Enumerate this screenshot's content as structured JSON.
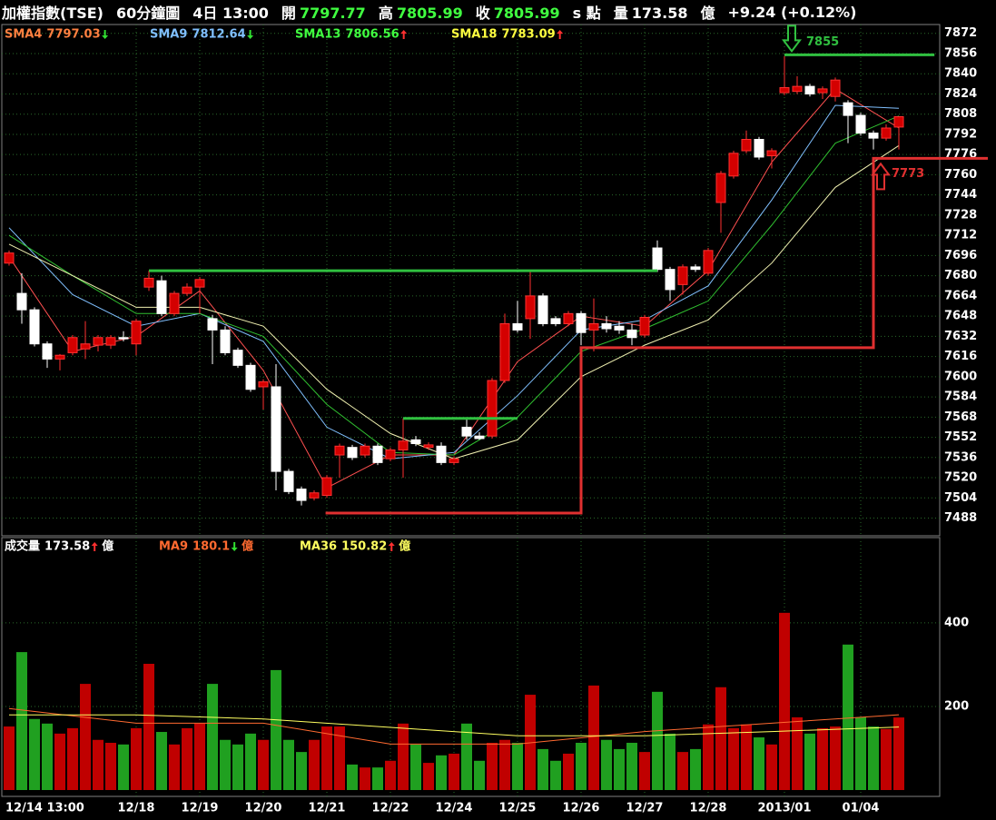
{
  "header": [
    {
      "text": "加權指數(TSE)"
    },
    {
      "text": "60分鐘圖"
    },
    {
      "text": "4日 13:00"
    },
    {
      "text": "開",
      "value": 7797.77,
      "color": "#40ff40"
    },
    {
      "text": "高",
      "value": 7805.99,
      "color": "#40ff40"
    },
    {
      "text": "收",
      "value": 7805.99,
      "color": "#40ff40"
    },
    {
      "text": "s 點"
    },
    {
      "text": "量",
      "value": 173.58,
      "color": "#ffffff"
    },
    {
      "text": "億"
    },
    {
      "text": "+9.24 (+0.12%)"
    }
  ],
  "chart_data": {
    "type": "candlestick",
    "categories": [
      "12/14 13:00",
      null,
      null,
      null,
      null,
      null,
      null,
      null,
      null,
      null,
      "12/18",
      null,
      null,
      null,
      null,
      "12/19",
      null,
      null,
      null,
      null,
      "12/20",
      null,
      null,
      null,
      null,
      "12/21",
      null,
      null,
      null,
      null,
      "12/22",
      null,
      null,
      null,
      null,
      "12/24",
      null,
      null,
      null,
      null,
      "12/25",
      null,
      null,
      null,
      null,
      "12/26",
      null,
      null,
      null,
      null,
      "12/27",
      null,
      null,
      null,
      null,
      "12/28",
      null,
      null,
      null,
      null,
      null,
      "2013/01",
      null,
      null,
      null,
      null,
      null,
      "01/04",
      null,
      null,
      null
    ],
    "open": [
      7690,
      7666,
      7653,
      7626,
      7614,
      7619,
      7622,
      7625,
      7625,
      7631,
      7626,
      7671,
      7676,
      7650,
      7666,
      7671,
      7646,
      7637,
      7621,
      7609,
      7592,
      7592,
      7525,
      7511,
      7504,
      7506,
      7538,
      7544,
      7538,
      7545,
      7535,
      7542,
      7550,
      7544,
      7545,
      7532,
      7560,
      7553,
      7553,
      7597,
      7642,
      7646,
      7664,
      7646,
      7642,
      7650,
      7637,
      7642,
      7640,
      7637,
      7633,
      7702,
      7685,
      7673,
      7687,
      7682,
      7738,
      7759,
      7779,
      7788,
      7775,
      7825,
      7826,
      7830,
      7825,
      7822,
      7817,
      7807,
      7793,
      7789,
      7797.77
    ],
    "high": [
      7700,
      7682,
      7655,
      7628,
      7618,
      7633,
      7644,
      7633,
      7633,
      7636,
      7646,
      7684,
      7680,
      7668,
      7674,
      7679,
      7649,
      7640,
      7623,
      7611,
      7598,
      7610,
      7527,
      7513,
      7510,
      7522,
      7547,
      7546,
      7547,
      7547,
      7544,
      7567,
      7553,
      7548,
      7548,
      7537,
      7567,
      7556,
      7599,
      7650,
      7660,
      7683,
      7666,
      7648,
      7652,
      7652,
      7662,
      7648,
      7644,
      7642,
      7649,
      7708,
      7687,
      7689,
      7689,
      7702,
      7763,
      7779,
      7795,
      7790,
      7781,
      7854,
      7838,
      7832,
      7830,
      7837,
      7819,
      7809,
      7795,
      7800,
      7805.99
    ],
    "low": [
      7688,
      7642,
      7624,
      7607,
      7605,
      7617,
      7614,
      7620,
      7622,
      7628,
      7617,
      7668,
      7648,
      7648,
      7664,
      7650,
      7610,
      7617,
      7607,
      7588,
      7574,
      7510,
      7507,
      7498,
      7502,
      7504,
      7520,
      7534,
      7536,
      7530,
      7533,
      7520,
      7545,
      7542,
      7530,
      7530,
      7550,
      7550,
      7551,
      7595,
      7635,
      7630,
      7640,
      7640,
      7640,
      7625,
      7620,
      7635,
      7634,
      7625,
      7631,
      7683,
      7660,
      7665,
      7683,
      7680,
      7714,
      7757,
      7777,
      7772,
      7765,
      7823,
      7824,
      7822,
      7820,
      7818,
      7785,
      7791,
      7780,
      7787,
      7780
    ],
    "close": [
      7698,
      7653,
      7626,
      7614,
      7617,
      7631,
      7626,
      7631,
      7631,
      7630,
      7644,
      7678,
      7650,
      7666,
      7671,
      7677,
      7637,
      7619,
      7609,
      7590,
      7596,
      7525,
      7509,
      7502,
      7508,
      7520,
      7545,
      7536,
      7545,
      7532,
      7542,
      7549,
      7547,
      7546,
      7532,
      7535,
      7553,
      7551,
      7597,
      7642,
      7637,
      7664,
      7642,
      7642,
      7650,
      7635,
      7642,
      7638,
      7637,
      7631,
      7647,
      7685,
      7669,
      7687,
      7685,
      7700,
      7761,
      7777,
      7788,
      7774,
      7779,
      7829,
      7830,
      7824,
      7828,
      7835,
      7807,
      7793,
      7789,
      7797,
      7805.99
    ],
    "up_color": "#d40000",
    "down_color": "#ffffff",
    "ylim": [
      7474,
      7879
    ],
    "yticks": [
      7488,
      7504,
      7520,
      7536,
      7552,
      7568,
      7584,
      7600,
      7616,
      7632,
      7648,
      7664,
      7680,
      7696,
      7712,
      7728,
      7744,
      7760,
      7776,
      7792,
      7808,
      7824,
      7840,
      7856,
      7872
    ],
    "grid": true,
    "series": [
      {
        "name": "SMA4",
        "color": "#ff8040",
        "line_color": "#ff5050",
        "trend": "down",
        "x": [
          0,
          5,
          10,
          15,
          20,
          25,
          30,
          35,
          40,
          45,
          50,
          55,
          60,
          65,
          70
        ],
        "values": [
          7695,
          7620,
          7632,
          7668,
          7605,
          7512,
          7538,
          7538,
          7612,
          7648,
          7640,
          7684,
          7770,
          7828,
          7797.03
        ]
      },
      {
        "name": "SMA9",
        "color": "#80c0ff",
        "line_color": "#80c0ff",
        "trend": "down",
        "x": [
          0,
          5,
          10,
          15,
          20,
          25,
          30,
          35,
          40,
          45,
          50,
          55,
          60,
          65,
          70
        ],
        "values": [
          7718,
          7665,
          7640,
          7650,
          7628,
          7560,
          7535,
          7540,
          7585,
          7637,
          7645,
          7672,
          7740,
          7815,
          7812.64
        ]
      },
      {
        "name": "SMA13",
        "color": "#40ff40",
        "line_color": "#30c030",
        "trend": "up",
        "x": [
          0,
          5,
          10,
          15,
          20,
          25,
          30,
          35,
          40,
          45,
          50,
          55,
          60,
          65,
          70
        ],
        "values": [
          7712,
          7680,
          7650,
          7650,
          7632,
          7578,
          7540,
          7538,
          7568,
          7620,
          7638,
          7660,
          7720,
          7785,
          7806.56
        ]
      },
      {
        "name": "SMA18",
        "color": "#ffff40",
        "line_color": "#f0f0b0",
        "trend": "up",
        "x": [
          0,
          5,
          10,
          15,
          20,
          25,
          30,
          35,
          40,
          45,
          50,
          55,
          60,
          65,
          70
        ],
        "values": [
          7705,
          7680,
          7655,
          7655,
          7640,
          7590,
          7555,
          7535,
          7550,
          7600,
          7625,
          7645,
          7690,
          7750,
          7783.09
        ]
      }
    ],
    "annotations": [
      {
        "color": "#30c040",
        "x": [
          11,
          51
        ],
        "values": [
          7684,
          7684
        ]
      },
      {
        "color": "#30c040",
        "x": [
          31,
          40
        ],
        "values": [
          7567,
          7567
        ]
      },
      {
        "color": "#30c040",
        "x": [
          61,
          72.8
        ],
        "values": [
          7855,
          7855
        ],
        "label": 7855,
        "arrow": "down"
      },
      {
        "color": "#e03030",
        "x": [
          24.9,
          45,
          45,
          68,
          68,
          77
        ],
        "values": [
          7492,
          7492,
          7623,
          7623,
          7773,
          7773
        ],
        "label": 7773,
        "arrow": "up"
      }
    ],
    "volume": {
      "type": "bar",
      "name": "成交量",
      "unit": "億",
      "trend": "up",
      "up_color": "#c00000",
      "down_color": "#20a020",
      "values": [
        152,
        330,
        170,
        159,
        135,
        148,
        254,
        120,
        113,
        109,
        148,
        302,
        139,
        109,
        148,
        159,
        254,
        120,
        109,
        135,
        120,
        287,
        120,
        91,
        120,
        152,
        152,
        61,
        54,
        54,
        70,
        159,
        109,
        65,
        83,
        87,
        159,
        70,
        113,
        120,
        113,
        228,
        98,
        70,
        87,
        113,
        250,
        120,
        98,
        113,
        91,
        235,
        135,
        91,
        98,
        157,
        246,
        148,
        157,
        126,
        109,
        424,
        174,
        135,
        148,
        152,
        348,
        174,
        152,
        146,
        173.58
      ],
      "ylim": [
        0,
        604
      ],
      "yticks": [
        200,
        400
      ],
      "series": [
        {
          "name": "MA9",
          "color": "#ff6a30",
          "trend": "down",
          "x": [
            0,
            10,
            20,
            30,
            40,
            50,
            60,
            70
          ],
          "values": [
            195,
            160,
            160,
            110,
            110,
            140,
            160,
            180.1
          ]
        },
        {
          "name": "MA36",
          "color": "#ffff60",
          "trend": "up",
          "x": [
            0,
            10,
            20,
            30,
            40,
            50,
            60,
            70
          ],
          "values": [
            180,
            180,
            170,
            150,
            130,
            130,
            140,
            150.82
          ]
        }
      ]
    }
  }
}
